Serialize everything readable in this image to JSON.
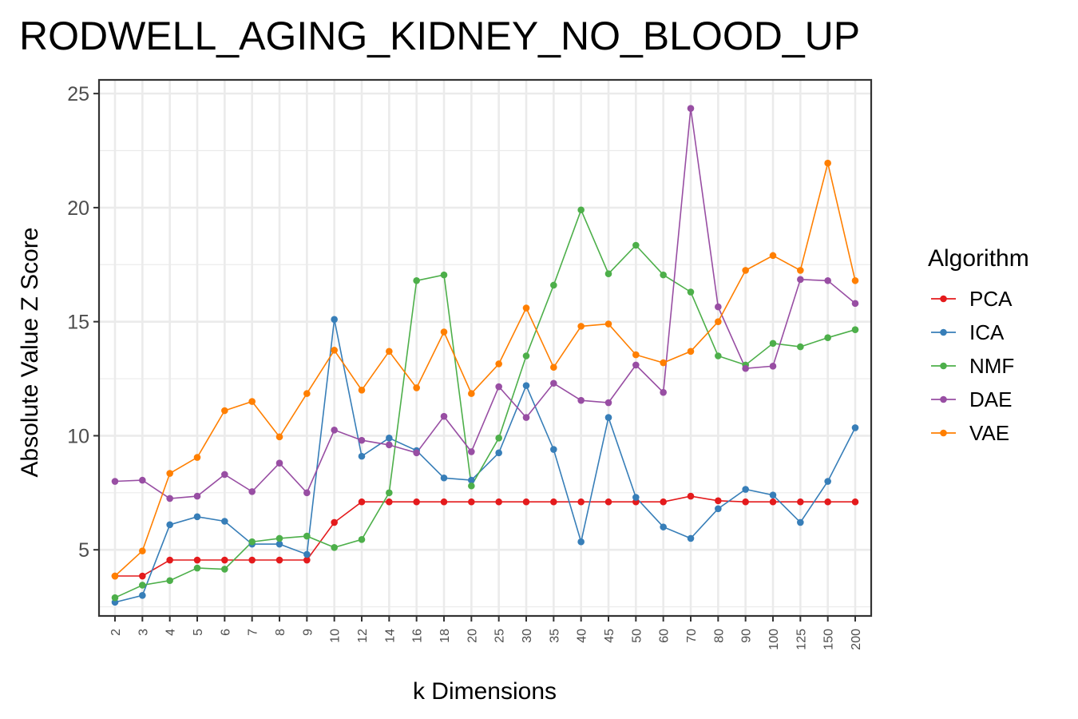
{
  "chart_data": {
    "type": "line",
    "title": "RODWELL_AGING_KIDNEY_NO_BLOOD_UP",
    "xlabel": "k Dimensions",
    "ylabel": "Absolute Value Z Score",
    "categories": [
      "2",
      "3",
      "4",
      "5",
      "6",
      "7",
      "8",
      "9",
      "10",
      "12",
      "14",
      "16",
      "18",
      "20",
      "25",
      "30",
      "35",
      "40",
      "45",
      "50",
      "60",
      "70",
      "80",
      "90",
      "100",
      "125",
      "150",
      "200"
    ],
    "ylim": [
      2.1,
      25.6
    ],
    "yticks": [
      5,
      10,
      15,
      20,
      25
    ],
    "grid": true,
    "legend": {
      "title": "Algorithm",
      "position": "right"
    },
    "series": [
      {
        "name": "PCA",
        "color": "#e41a1c",
        "values": [
          3.85,
          3.85,
          4.55,
          4.55,
          4.55,
          4.55,
          4.55,
          4.55,
          6.2,
          7.1,
          7.1,
          7.1,
          7.1,
          7.1,
          7.1,
          7.1,
          7.1,
          7.1,
          7.1,
          7.1,
          7.1,
          7.35,
          7.15,
          7.1,
          7.1,
          7.1,
          7.1,
          7.1
        ]
      },
      {
        "name": "ICA",
        "color": "#377eb8",
        "values": [
          2.7,
          3.0,
          6.1,
          6.45,
          6.25,
          5.25,
          5.25,
          4.8,
          15.1,
          9.1,
          9.9,
          9.35,
          8.15,
          8.05,
          9.25,
          12.2,
          9.4,
          5.35,
          10.8,
          7.3,
          6.0,
          5.5,
          6.8,
          7.65,
          7.4,
          6.2,
          8.0,
          10.35
        ]
      },
      {
        "name": "NMF",
        "color": "#4daf4a",
        "values": [
          2.9,
          3.45,
          3.65,
          4.2,
          4.15,
          5.35,
          5.5,
          5.6,
          5.1,
          5.45,
          7.5,
          16.8,
          17.05,
          7.8,
          9.9,
          13.5,
          16.6,
          19.9,
          17.1,
          18.35,
          17.05,
          16.3,
          13.5,
          13.1,
          14.05,
          13.9,
          14.3,
          14.65
        ]
      },
      {
        "name": "DAE",
        "color": "#984ea3",
        "values": [
          8.0,
          8.05,
          7.25,
          7.35,
          8.3,
          7.55,
          8.8,
          7.5,
          10.25,
          9.8,
          9.6,
          9.25,
          10.85,
          9.3,
          12.15,
          10.8,
          12.3,
          11.55,
          11.45,
          13.1,
          11.9,
          24.35,
          15.65,
          12.95,
          13.05,
          16.85,
          16.8,
          15.8
        ]
      },
      {
        "name": "VAE",
        "color": "#ff7f00",
        "values": [
          3.85,
          4.95,
          8.35,
          9.05,
          11.1,
          11.5,
          9.95,
          11.85,
          13.75,
          12.0,
          13.7,
          12.1,
          14.55,
          11.85,
          13.15,
          15.6,
          13.0,
          14.8,
          14.9,
          13.55,
          13.2,
          13.7,
          15.0,
          17.25,
          17.9,
          17.25,
          21.95,
          16.8
        ]
      }
    ]
  }
}
